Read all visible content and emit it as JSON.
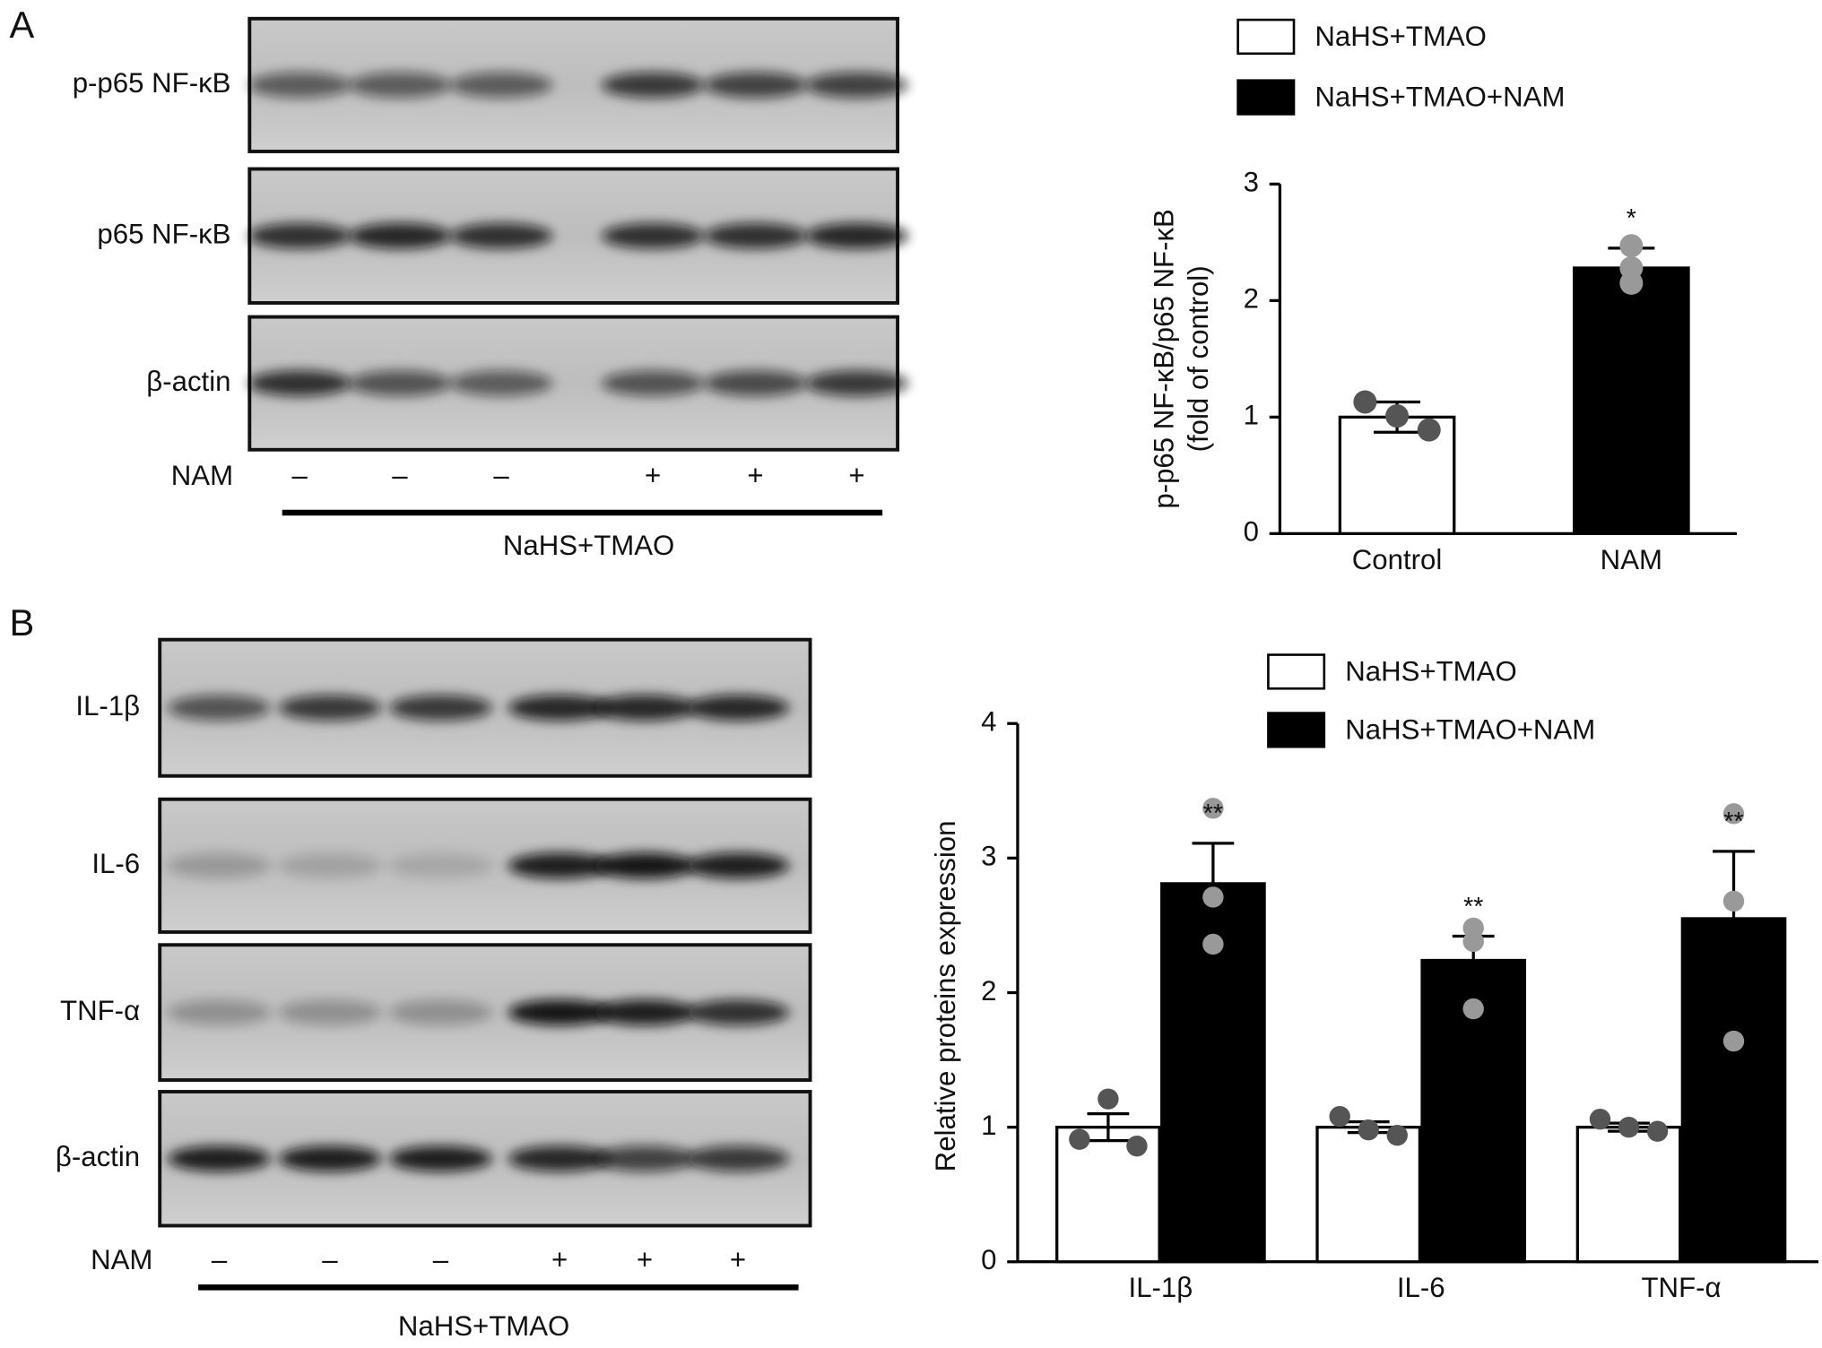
{
  "panels": {
    "A": {
      "label": "A",
      "blot": {
        "rows": [
          "p-p65 NF-κB",
          "p65 NF-κB",
          "β-actin"
        ],
        "treatment_label": "NAM",
        "treatment": [
          "–",
          "–",
          "–",
          "+",
          "+",
          "+"
        ],
        "group": "NaHS+TMAO"
      }
    },
    "B": {
      "label": "B",
      "blot": {
        "rows": [
          "IL-1β",
          "IL-6",
          "TNF-α",
          "β-actin"
        ],
        "treatment_label": "NAM",
        "treatment": [
          "–",
          "–",
          "–",
          "+",
          "+",
          "+"
        ],
        "group": "NaHS+TMAO"
      }
    }
  },
  "chart_data": [
    {
      "type": "bar",
      "ylabel": [
        "p-p65 NF-κB/p65 NF-κB",
        "(fold of control)"
      ],
      "categories": [
        "Control",
        "NAM"
      ],
      "ylim": [
        0,
        3
      ],
      "yticks": [
        0,
        1,
        2,
        3
      ],
      "series": [
        {
          "name": "NaHS+TMAO",
          "color": "#ffffff",
          "point_color": "#555555",
          "values": [
            1.0,
            null
          ],
          "errors": [
            0.13,
            null
          ],
          "points": [
            [
              1.13,
              1.01,
              0.89
            ],
            null
          ],
          "significance": [
            null,
            null
          ]
        },
        {
          "name": "NaHS+TMAO+NAM",
          "color": "#000000",
          "point_color": "#999999",
          "values": [
            null,
            2.28
          ],
          "errors": [
            null,
            0.17
          ],
          "points": [
            null,
            [
              2.28,
              2.47,
              2.15
            ]
          ],
          "significance": [
            null,
            "*"
          ]
        }
      ]
    },
    {
      "type": "bar",
      "ylabel": [
        "Relative proteins expression"
      ],
      "categories": [
        "IL-1β",
        "IL-6",
        "TNF-α"
      ],
      "ylim": [
        0,
        4
      ],
      "yticks": [
        0,
        1,
        2,
        3,
        4
      ],
      "series": [
        {
          "name": "NaHS+TMAO",
          "color": "#ffffff",
          "point_color": "#555555",
          "values": [
            1.0,
            1.0,
            1.0
          ],
          "errors": [
            0.1,
            0.04,
            0.03
          ],
          "points": [
            [
              0.91,
              1.21,
              0.86
            ],
            [
              1.08,
              0.98,
              0.94
            ],
            [
              1.06,
              1.0,
              0.97
            ]
          ],
          "significance": [
            null,
            null,
            null
          ]
        },
        {
          "name": "NaHS+TMAO+NAM",
          "color": "#000000",
          "point_color": "#999999",
          "values": [
            2.81,
            2.24,
            2.55
          ],
          "errors": [
            0.3,
            0.18,
            0.5
          ],
          "points": [
            [
              3.37,
              2.71,
              2.36
            ],
            [
              2.48,
              2.38,
              1.88
            ],
            [
              3.33,
              2.68,
              1.64
            ]
          ],
          "significance": [
            "**",
            "**",
            "**"
          ]
        }
      ]
    }
  ]
}
